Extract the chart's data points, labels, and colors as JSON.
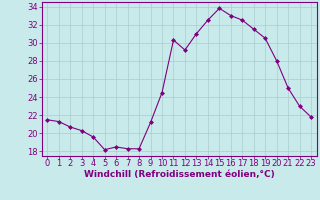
{
  "x": [
    0,
    1,
    2,
    3,
    4,
    5,
    6,
    7,
    8,
    9,
    10,
    11,
    12,
    13,
    14,
    15,
    16,
    17,
    18,
    19,
    20,
    21,
    22,
    23
  ],
  "y": [
    21.5,
    21.3,
    20.7,
    20.3,
    19.6,
    18.2,
    18.5,
    18.3,
    18.3,
    21.2,
    24.5,
    30.3,
    29.2,
    31.0,
    32.5,
    33.8,
    33.0,
    32.5,
    31.5,
    30.5,
    28.0,
    25.0,
    23.0,
    21.8
  ],
  "line_color": "#800080",
  "marker": "D",
  "marker_size": 2,
  "bg_color": "#c8eaea",
  "grid_color": "#aacccc",
  "xlabel": "Windchill (Refroidissement éolien,°C)",
  "xlabel_fontsize": 6.5,
  "tick_fontsize": 6.0,
  "ylim": [
    17.5,
    34.5
  ],
  "yticks": [
    18,
    20,
    22,
    24,
    26,
    28,
    30,
    32,
    34
  ],
  "xlim": [
    -0.5,
    23.5
  ],
  "xticks": [
    0,
    1,
    2,
    3,
    4,
    5,
    6,
    7,
    8,
    9,
    10,
    11,
    12,
    13,
    14,
    15,
    16,
    17,
    18,
    19,
    20,
    21,
    22,
    23
  ]
}
